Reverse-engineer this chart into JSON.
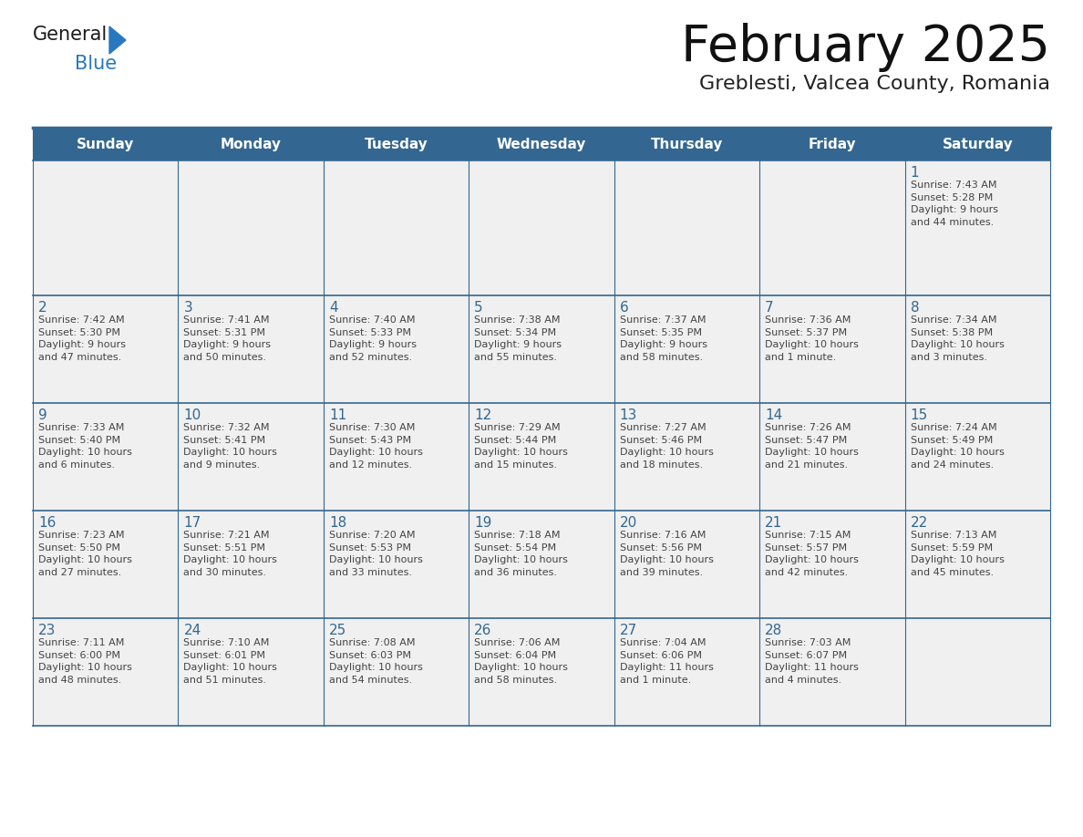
{
  "title": "February 2025",
  "subtitle": "Greblesti, Valcea County, Romania",
  "header_bg": "#336791",
  "header_text_color": "#ffffff",
  "cell_bg": "#f0f0f0",
  "day_number_color": "#336791",
  "info_text_color": "#444444",
  "border_color": "#336791",
  "row_line_color": "#5577aa",
  "days_of_week": [
    "Sunday",
    "Monday",
    "Tuesday",
    "Wednesday",
    "Thursday",
    "Friday",
    "Saturday"
  ],
  "weeks": [
    [
      {
        "day": null,
        "info": null
      },
      {
        "day": null,
        "info": null
      },
      {
        "day": null,
        "info": null
      },
      {
        "day": null,
        "info": null
      },
      {
        "day": null,
        "info": null
      },
      {
        "day": null,
        "info": null
      },
      {
        "day": "1",
        "info": "Sunrise: 7:43 AM\nSunset: 5:28 PM\nDaylight: 9 hours\nand 44 minutes."
      }
    ],
    [
      {
        "day": "2",
        "info": "Sunrise: 7:42 AM\nSunset: 5:30 PM\nDaylight: 9 hours\nand 47 minutes."
      },
      {
        "day": "3",
        "info": "Sunrise: 7:41 AM\nSunset: 5:31 PM\nDaylight: 9 hours\nand 50 minutes."
      },
      {
        "day": "4",
        "info": "Sunrise: 7:40 AM\nSunset: 5:33 PM\nDaylight: 9 hours\nand 52 minutes."
      },
      {
        "day": "5",
        "info": "Sunrise: 7:38 AM\nSunset: 5:34 PM\nDaylight: 9 hours\nand 55 minutes."
      },
      {
        "day": "6",
        "info": "Sunrise: 7:37 AM\nSunset: 5:35 PM\nDaylight: 9 hours\nand 58 minutes."
      },
      {
        "day": "7",
        "info": "Sunrise: 7:36 AM\nSunset: 5:37 PM\nDaylight: 10 hours\nand 1 minute."
      },
      {
        "day": "8",
        "info": "Sunrise: 7:34 AM\nSunset: 5:38 PM\nDaylight: 10 hours\nand 3 minutes."
      }
    ],
    [
      {
        "day": "9",
        "info": "Sunrise: 7:33 AM\nSunset: 5:40 PM\nDaylight: 10 hours\nand 6 minutes."
      },
      {
        "day": "10",
        "info": "Sunrise: 7:32 AM\nSunset: 5:41 PM\nDaylight: 10 hours\nand 9 minutes."
      },
      {
        "day": "11",
        "info": "Sunrise: 7:30 AM\nSunset: 5:43 PM\nDaylight: 10 hours\nand 12 minutes."
      },
      {
        "day": "12",
        "info": "Sunrise: 7:29 AM\nSunset: 5:44 PM\nDaylight: 10 hours\nand 15 minutes."
      },
      {
        "day": "13",
        "info": "Sunrise: 7:27 AM\nSunset: 5:46 PM\nDaylight: 10 hours\nand 18 minutes."
      },
      {
        "day": "14",
        "info": "Sunrise: 7:26 AM\nSunset: 5:47 PM\nDaylight: 10 hours\nand 21 minutes."
      },
      {
        "day": "15",
        "info": "Sunrise: 7:24 AM\nSunset: 5:49 PM\nDaylight: 10 hours\nand 24 minutes."
      }
    ],
    [
      {
        "day": "16",
        "info": "Sunrise: 7:23 AM\nSunset: 5:50 PM\nDaylight: 10 hours\nand 27 minutes."
      },
      {
        "day": "17",
        "info": "Sunrise: 7:21 AM\nSunset: 5:51 PM\nDaylight: 10 hours\nand 30 minutes."
      },
      {
        "day": "18",
        "info": "Sunrise: 7:20 AM\nSunset: 5:53 PM\nDaylight: 10 hours\nand 33 minutes."
      },
      {
        "day": "19",
        "info": "Sunrise: 7:18 AM\nSunset: 5:54 PM\nDaylight: 10 hours\nand 36 minutes."
      },
      {
        "day": "20",
        "info": "Sunrise: 7:16 AM\nSunset: 5:56 PM\nDaylight: 10 hours\nand 39 minutes."
      },
      {
        "day": "21",
        "info": "Sunrise: 7:15 AM\nSunset: 5:57 PM\nDaylight: 10 hours\nand 42 minutes."
      },
      {
        "day": "22",
        "info": "Sunrise: 7:13 AM\nSunset: 5:59 PM\nDaylight: 10 hours\nand 45 minutes."
      }
    ],
    [
      {
        "day": "23",
        "info": "Sunrise: 7:11 AM\nSunset: 6:00 PM\nDaylight: 10 hours\nand 48 minutes."
      },
      {
        "day": "24",
        "info": "Sunrise: 7:10 AM\nSunset: 6:01 PM\nDaylight: 10 hours\nand 51 minutes."
      },
      {
        "day": "25",
        "info": "Sunrise: 7:08 AM\nSunset: 6:03 PM\nDaylight: 10 hours\nand 54 minutes."
      },
      {
        "day": "26",
        "info": "Sunrise: 7:06 AM\nSunset: 6:04 PM\nDaylight: 10 hours\nand 58 minutes."
      },
      {
        "day": "27",
        "info": "Sunrise: 7:04 AM\nSunset: 6:06 PM\nDaylight: 11 hours\nand 1 minute."
      },
      {
        "day": "28",
        "info": "Sunrise: 7:03 AM\nSunset: 6:07 PM\nDaylight: 11 hours\nand 4 minutes."
      },
      {
        "day": null,
        "info": null
      }
    ]
  ],
  "logo_text_general": "General",
  "logo_text_blue": "Blue",
  "logo_color_general": "#1a1a1a",
  "logo_color_blue": "#2878c0",
  "logo_triangle_color": "#2878c0",
  "fig_width": 11.88,
  "fig_height": 9.18,
  "fig_dpi": 100
}
